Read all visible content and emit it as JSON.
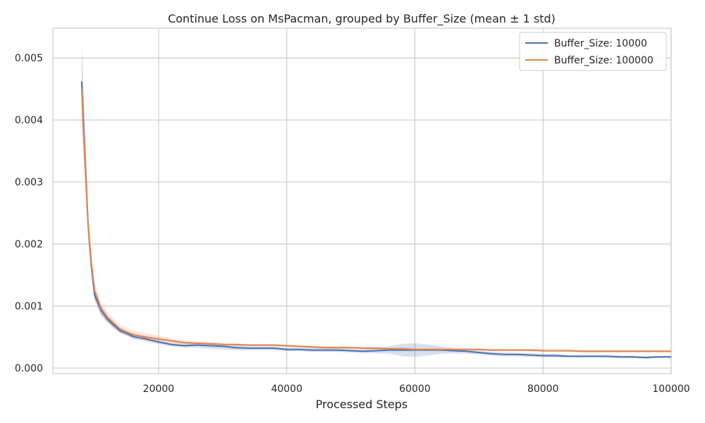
{
  "chart_data": {
    "type": "line",
    "title": "Continue Loss on MsPacman, grouped by Buffer_Size (mean ± 1 std)",
    "xlabel": "Processed Steps",
    "ylabel": "",
    "xlim": [
      3500,
      100000
    ],
    "ylim": [
      -9e-05,
      0.00548
    ],
    "xticks": [
      20000,
      40000,
      60000,
      80000,
      100000
    ],
    "xtick_labels": [
      "20000",
      "40000",
      "60000",
      "80000",
      "100000"
    ],
    "yticks": [
      0.0,
      0.001,
      0.002,
      0.003,
      0.004,
      0.005
    ],
    "ytick_labels": [
      "0.000",
      "0.001",
      "0.002",
      "0.003",
      "0.004",
      "0.005"
    ],
    "grid": true,
    "legend_position": "top-right",
    "series": [
      {
        "name": "Buffer_Size: 10000",
        "color": "#4c72b0",
        "x": [
          8000,
          8500,
          9000,
          9500,
          10000,
          11000,
          12000,
          13000,
          14000,
          15000,
          16000,
          18000,
          20000,
          22000,
          24000,
          26000,
          28000,
          30000,
          32000,
          34000,
          36000,
          38000,
          40000,
          42000,
          44000,
          46000,
          48000,
          50000,
          52000,
          54000,
          56000,
          58000,
          60000,
          62000,
          64000,
          66000,
          68000,
          70000,
          72000,
          74000,
          76000,
          78000,
          80000,
          82000,
          84000,
          86000,
          88000,
          90000,
          92000,
          94000,
          96000,
          98000,
          100000
        ],
        "y": [
          0.00461,
          0.0035,
          0.0023,
          0.00165,
          0.00118,
          0.00093,
          0.00079,
          0.00069,
          0.0006,
          0.00056,
          0.00051,
          0.00047,
          0.00042,
          0.00038,
          0.00036,
          0.00037,
          0.00036,
          0.00035,
          0.00033,
          0.00032,
          0.00032,
          0.00032,
          0.0003,
          0.0003,
          0.00029,
          0.00029,
          0.00029,
          0.00028,
          0.00027,
          0.00028,
          0.00029,
          0.00029,
          0.00029,
          0.00029,
          0.00029,
          0.00028,
          0.00027,
          0.00025,
          0.00023,
          0.00022,
          0.00022,
          0.00021,
          0.0002,
          0.0002,
          0.00019,
          0.00019,
          0.00019,
          0.00019,
          0.00018,
          0.00018,
          0.00017,
          0.00018,
          0.00018
        ],
        "std": [
          0.0006,
          0.0003,
          0.0002,
          0.00012,
          0.0001,
          8e-05,
          6e-05,
          5e-05,
          4e-05,
          4e-05,
          4e-05,
          4e-05,
          3e-05,
          3e-05,
          3e-05,
          4e-05,
          5e-05,
          5e-05,
          4e-05,
          3e-05,
          3e-05,
          3e-05,
          3e-05,
          3e-05,
          3e-05,
          3e-05,
          3e-05,
          3e-05,
          3e-05,
          4e-05,
          6e-05,
          0.0001,
          0.00011,
          9e-05,
          6e-05,
          4e-05,
          4e-05,
          3e-05,
          3e-05,
          3e-05,
          3e-05,
          3e-05,
          3e-05,
          3e-05,
          2e-05,
          2e-05,
          2e-05,
          2e-05,
          2e-05,
          2e-05,
          2e-05,
          2e-05,
          2e-05
        ]
      },
      {
        "name": "Buffer_Size: 100000",
        "color": "#dd8452",
        "x": [
          8000,
          8500,
          9000,
          9500,
          10000,
          11000,
          12000,
          13000,
          14000,
          15000,
          16000,
          18000,
          20000,
          22000,
          24000,
          26000,
          28000,
          30000,
          32000,
          34000,
          36000,
          38000,
          40000,
          42000,
          44000,
          46000,
          48000,
          50000,
          52000,
          54000,
          56000,
          58000,
          60000,
          62000,
          64000,
          66000,
          68000,
          70000,
          72000,
          74000,
          76000,
          78000,
          80000,
          82000,
          84000,
          86000,
          88000,
          90000,
          92000,
          94000,
          96000,
          98000,
          100000
        ],
        "y": [
          0.0045,
          0.0034,
          0.0023,
          0.0017,
          0.00125,
          0.00096,
          0.00082,
          0.00072,
          0.00063,
          0.00058,
          0.00054,
          0.0005,
          0.00047,
          0.00044,
          0.00041,
          0.0004,
          0.00039,
          0.00038,
          0.00038,
          0.00037,
          0.00037,
          0.00037,
          0.00036,
          0.00035,
          0.00034,
          0.00033,
          0.00033,
          0.00033,
          0.00032,
          0.00032,
          0.00031,
          0.00031,
          0.0003,
          0.0003,
          0.0003,
          0.0003,
          0.0003,
          0.0003,
          0.00029,
          0.00029,
          0.00029,
          0.00029,
          0.00028,
          0.00028,
          0.00028,
          0.00027,
          0.00027,
          0.00027,
          0.00027,
          0.00027,
          0.00027,
          0.00027,
          0.00027
        ],
        "std": [
          0.0007,
          0.0004,
          0.0002,
          0.00015,
          0.00012,
          0.0001,
          8e-05,
          7e-05,
          6e-05,
          6e-05,
          6e-05,
          6e-05,
          5e-05,
          4e-05,
          3e-05,
          3e-05,
          3e-05,
          2e-05,
          2e-05,
          2e-05,
          2e-05,
          2e-05,
          2e-05,
          2e-05,
          2e-05,
          2e-05,
          2e-05,
          2e-05,
          2e-05,
          2e-05,
          2e-05,
          2e-05,
          2e-05,
          2e-05,
          2e-05,
          2e-05,
          2e-05,
          2e-05,
          2e-05,
          2e-05,
          2e-05,
          2e-05,
          2e-05,
          2e-05,
          2e-05,
          2e-05,
          2e-05,
          2e-05,
          2e-05,
          2e-05,
          2e-05,
          2e-05,
          2e-05
        ]
      }
    ]
  }
}
